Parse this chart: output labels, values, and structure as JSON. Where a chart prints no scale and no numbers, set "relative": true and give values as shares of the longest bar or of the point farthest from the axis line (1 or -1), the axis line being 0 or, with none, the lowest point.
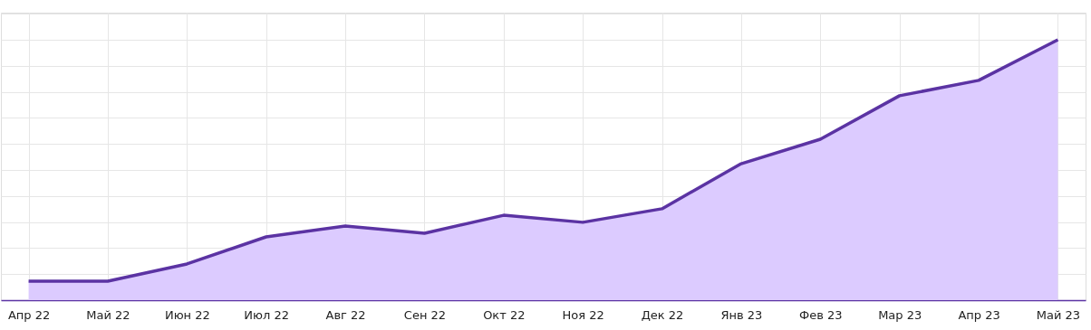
{
  "chart_data": {
    "type": "area",
    "relative": true,
    "grid": true,
    "categories": [
      "Апр 22",
      "Май 22",
      "Июн 22",
      "Июл 22",
      "Авг 22",
      "Сен 22",
      "Окт 22",
      "Ноя 22",
      "Дек 22",
      "Янв 23",
      "Фев 23",
      "Мар 23",
      "Апр 23",
      "Май 23"
    ],
    "series": [
      {
        "color": "#5b33a3",
        "values": [
          0.073,
          0.073,
          0.139,
          0.243,
          0.285,
          0.257,
          0.326,
          0.299,
          0.351,
          0.524,
          0.618,
          0.785,
          0.844,
          1
        ]
      }
    ]
  }
}
